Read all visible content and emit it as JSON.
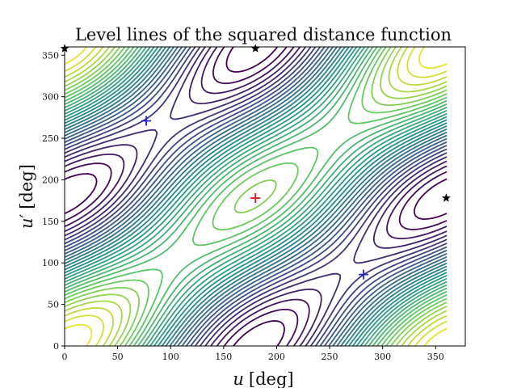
{
  "chart_data": {
    "type": "contour",
    "title": "Level lines of the squared distance function",
    "xlabel_var": "u",
    "ylabel_var": "u′",
    "unit": "[deg]",
    "xlim": [
      0,
      378
    ],
    "ylim": [
      0,
      360
    ],
    "xticks": [
      0,
      50,
      100,
      150,
      200,
      250,
      300,
      350
    ],
    "yticks": [
      0,
      50,
      100,
      150,
      200,
      250,
      300,
      350
    ],
    "colormap": [
      "#440154",
      "#3b528b",
      "#21918c",
      "#5ec962",
      "#fde725"
    ],
    "contour": {
      "center": [
        180,
        180
      ],
      "center_value_fraction": 0.04,
      "levels": 30,
      "diag_k": 0.11,
      "anti_k": 0.55,
      "x_range": [
        0,
        360
      ],
      "y_range": [
        0,
        360
      ]
    },
    "markers": [
      {
        "name": "center",
        "symbol": "plus",
        "color": "#e41a1c",
        "x": 180,
        "y": 178
      },
      {
        "name": "upper-left",
        "symbol": "plus",
        "color": "#1f1fdd",
        "x": 77,
        "y": 271
      },
      {
        "name": "lower-right",
        "symbol": "plus",
        "color": "#1f1fdd",
        "x": 282,
        "y": 86
      },
      {
        "name": "star-right",
        "symbol": "star",
        "color": "#000000",
        "x": 360,
        "y": 178
      },
      {
        "name": "star-top",
        "symbol": "star",
        "color": "#000000",
        "x": 180,
        "y": 358
      },
      {
        "name": "star-corner",
        "symbol": "star",
        "color": "#000000",
        "x": 0,
        "y": 358
      }
    ]
  }
}
